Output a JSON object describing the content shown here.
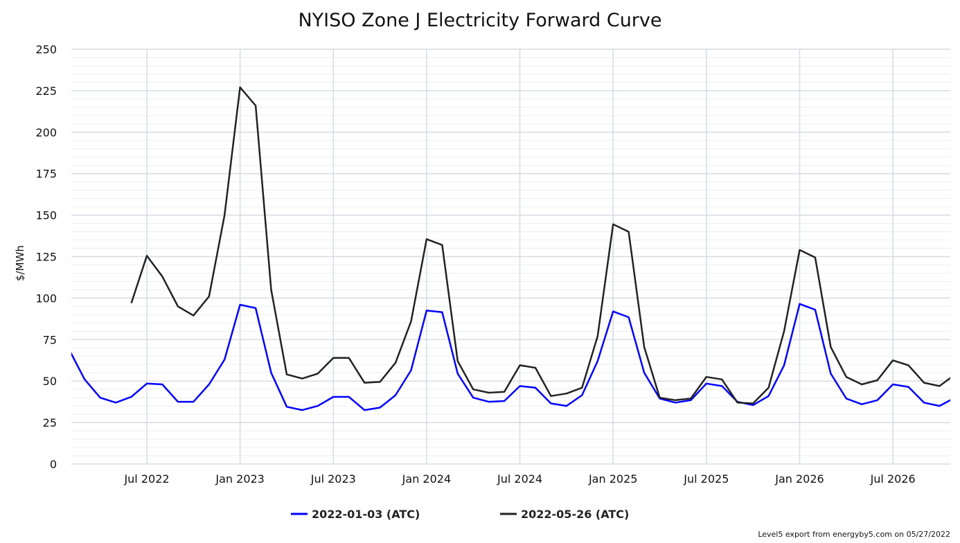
{
  "chart_data": {
    "type": "line",
    "title": "NYISO Zone J Electricity Forward Curve",
    "ylabel": "$/MWh",
    "xlabel": "",
    "ylim": [
      0,
      250
    ],
    "yticks": [
      0,
      25,
      50,
      75,
      100,
      125,
      150,
      175,
      200,
      225,
      250
    ],
    "x_start_month": "2022-02",
    "x_range_months": [
      -0.1,
      56.7
    ],
    "xticks": [
      {
        "label": "Jul 2022",
        "m": 5
      },
      {
        "label": "Jan 2023",
        "m": 11
      },
      {
        "label": "Jul 2023",
        "m": 17
      },
      {
        "label": "Jan 2024",
        "m": 23
      },
      {
        "label": "Jul 2024",
        "m": 29
      },
      {
        "label": "Jan 2025",
        "m": 35
      },
      {
        "label": "Jul 2025",
        "m": 41
      },
      {
        "label": "Jan 2026",
        "m": 47
      },
      {
        "label": "Jul 2026",
        "m": 53
      }
    ],
    "grid": true,
    "legend_position": "bottom",
    "series": [
      {
        "name": "2022-01-03 (ATC)",
        "color": "#0000ff",
        "start_month": 0,
        "values": [
          69,
          51,
          40,
          37,
          40.5,
          48.5,
          48,
          37.5,
          37.5,
          48,
          63,
          96,
          94,
          55,
          34.5,
          32.5,
          35,
          40.5,
          40.5,
          32.5,
          34,
          41.5,
          56.5,
          92.5,
          91.5,
          54.5,
          40,
          37.5,
          38,
          47,
          46,
          36.5,
          35,
          41.5,
          62,
          92,
          88.5,
          55,
          39.5,
          37,
          38.5,
          48.5,
          47,
          37.5,
          35.5,
          41,
          59.5,
          96.5,
          93,
          54.5,
          39.5,
          36,
          38.5,
          48,
          46.5,
          37,
          35,
          40
        ]
      },
      {
        "name": "2022-05-26 (ATC)",
        "color": "#222222",
        "start_month": 4,
        "values": [
          97,
          125.5,
          113,
          95,
          89.5,
          101,
          150,
          227,
          216,
          105,
          54,
          51.5,
          54.5,
          64,
          64,
          49,
          49.5,
          61,
          86,
          135.5,
          132,
          62,
          45,
          43,
          43.5,
          59.5,
          58,
          41,
          42.5,
          46,
          77,
          144.5,
          140,
          70.5,
          40,
          38.5,
          39.5,
          52.5,
          51,
          37,
          36.5,
          46,
          80,
          129,
          124.5,
          70.5,
          52.5,
          48,
          50.5,
          62.5,
          59.5,
          49,
          47,
          54
        ]
      }
    ]
  },
  "footer": "Level5 export from energyby5.com on 05/27/2022"
}
